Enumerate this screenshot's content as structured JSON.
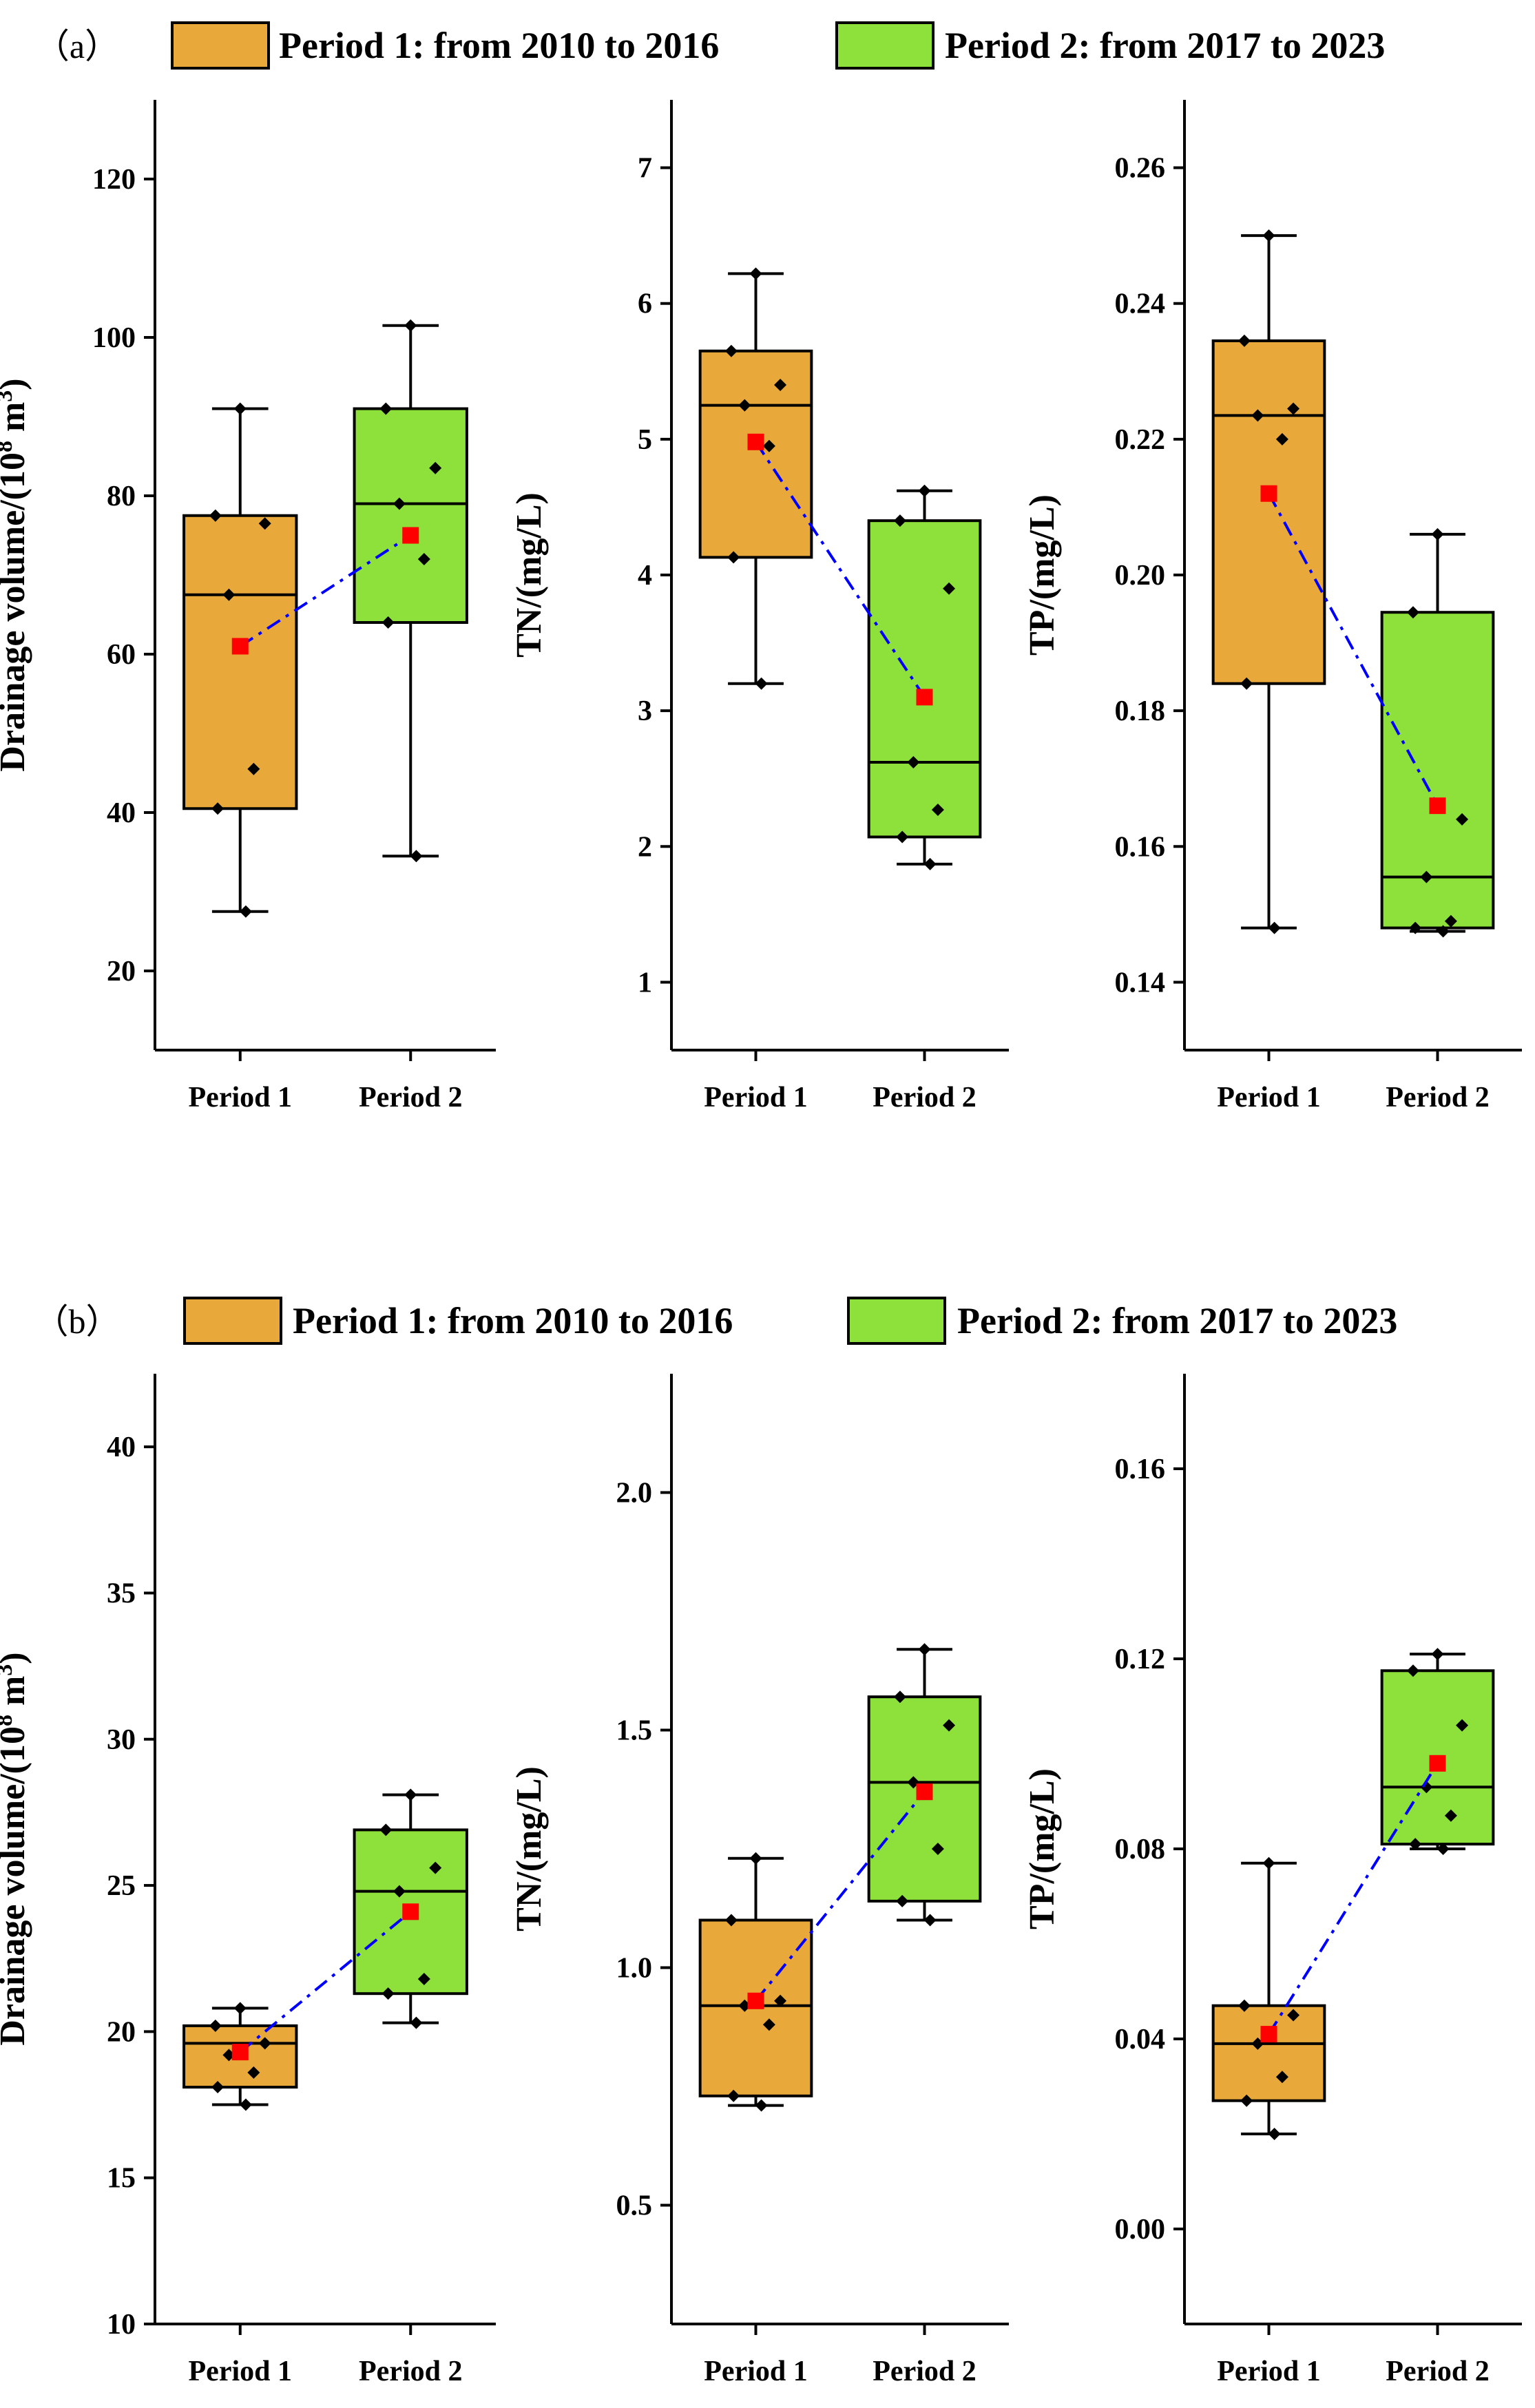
{
  "panels": [
    {
      "label": "（a）",
      "legend": [
        "Period 1: from 2010 to 2016",
        "Period 2: from 2017 to 2023"
      ],
      "charts": [
        {
          "type": "box",
          "ylabel": "Drainage volume/(10^8 m^3)",
          "ylim": [
            10,
            130
          ],
          "yticks": [
            20,
            40,
            60,
            80,
            100,
            120
          ],
          "categories": [
            "Period 1",
            "Period 2"
          ],
          "series": [
            {
              "whisker_low": 27.5,
              "q1": 40.5,
              "median": 67.5,
              "q3": 77.5,
              "whisker_high": 91,
              "mean": 61,
              "points": [
                91,
                77.5,
                76.5,
                67.5,
                45.5,
                40.5,
                27.5
              ]
            },
            {
              "whisker_low": 34.5,
              "q1": 64,
              "median": 79,
              "q3": 91,
              "whisker_high": 101.5,
              "mean": 75,
              "points": [
                101.5,
                91,
                83.5,
                79,
                72,
                64,
                34.5
              ]
            }
          ]
        },
        {
          "type": "box",
          "ylabel": "TN/(mg/L)",
          "ylim": [
            0.5,
            7.5
          ],
          "yticks": [
            1,
            2,
            3,
            4,
            5,
            6,
            7
          ],
          "categories": [
            "Period 1",
            "Period 2"
          ],
          "series": [
            {
              "whisker_low": 3.2,
              "q1": 4.13,
              "median": 5.25,
              "q3": 5.65,
              "whisker_high": 6.22,
              "mean": 4.98,
              "points": [
                6.22,
                5.65,
                5.4,
                5.25,
                4.95,
                4.13,
                3.2
              ]
            },
            {
              "whisker_low": 1.87,
              "q1": 2.07,
              "median": 2.62,
              "q3": 4.4,
              "whisker_high": 4.62,
              "mean": 3.1,
              "points": [
                4.62,
                4.4,
                3.9,
                2.62,
                2.27,
                2.07,
                1.87
              ]
            }
          ]
        },
        {
          "type": "box",
          "ylabel": "TP/(mg/L)",
          "ylim": [
            0.13,
            0.27
          ],
          "yticks": [
            0.14,
            0.16,
            0.18,
            0.2,
            0.22,
            0.24,
            0.26
          ],
          "categories": [
            "Period 1",
            "Period 2"
          ],
          "series": [
            {
              "whisker_low": 0.148,
              "q1": 0.184,
              "median": 0.2235,
              "q3": 0.2345,
              "whisker_high": 0.25,
              "mean": 0.212,
              "points": [
                0.25,
                0.2345,
                0.2245,
                0.2235,
                0.22,
                0.184,
                0.148
              ]
            },
            {
              "whisker_low": 0.1475,
              "q1": 0.148,
              "median": 0.1555,
              "q3": 0.1945,
              "whisker_high": 0.206,
              "mean": 0.166,
              "points": [
                0.206,
                0.1945,
                0.164,
                0.1555,
                0.149,
                0.148,
                0.1475
              ]
            }
          ]
        }
      ]
    },
    {
      "label": "（b）",
      "legend": [
        "Period 1: from 2010 to 2016",
        "Period 2: from 2017 to 2023"
      ],
      "charts": [
        {
          "type": "box",
          "ylabel": "Drainage volume/(10^8 m^3)",
          "ylim": [
            10,
            42.5
          ],
          "yticks": [
            10,
            15,
            20,
            25,
            30,
            35,
            40
          ],
          "categories": [
            "Period 1",
            "Period 2"
          ],
          "series": [
            {
              "whisker_low": 17.5,
              "q1": 18.1,
              "median": 19.6,
              "q3": 20.2,
              "whisker_high": 20.8,
              "mean": 19.3,
              "points": [
                20.8,
                20.2,
                19.6,
                19.2,
                18.6,
                18.1,
                17.5
              ]
            },
            {
              "whisker_low": 20.3,
              "q1": 21.3,
              "median": 24.8,
              "q3": 26.9,
              "whisker_high": 28.1,
              "mean": 24.1,
              "points": [
                28.1,
                26.9,
                25.6,
                24.8,
                21.8,
                21.3,
                20.3
              ]
            }
          ]
        },
        {
          "type": "box",
          "ylabel": "TN/(mg/L)",
          "ylim": [
            0.25,
            2.25
          ],
          "yticks": [
            0.5,
            1.0,
            1.5,
            2.0
          ],
          "categories": [
            "Period 1",
            "Period 2"
          ],
          "series": [
            {
              "whisker_low": 0.71,
              "q1": 0.73,
              "median": 0.92,
              "q3": 1.1,
              "whisker_high": 1.23,
              "mean": 0.93,
              "points": [
                1.23,
                1.1,
                0.93,
                0.92,
                0.88,
                0.73,
                0.71
              ]
            },
            {
              "whisker_low": 1.1,
              "q1": 1.14,
              "median": 1.39,
              "q3": 1.57,
              "whisker_high": 1.67,
              "mean": 1.37,
              "points": [
                1.67,
                1.57,
                1.51,
                1.39,
                1.25,
                1.14,
                1.1
              ]
            }
          ]
        },
        {
          "type": "box",
          "ylabel": "TP/(mg/L)",
          "ylim": [
            -0.02,
            0.18
          ],
          "yticks": [
            0.0,
            0.04,
            0.08,
            0.12,
            0.16
          ],
          "categories": [
            "Period 1",
            "Period 2"
          ],
          "series": [
            {
              "whisker_low": 0.02,
              "q1": 0.027,
              "median": 0.039,
              "q3": 0.047,
              "whisker_high": 0.077,
              "mean": 0.041,
              "points": [
                0.077,
                0.047,
                0.045,
                0.039,
                0.032,
                0.027,
                0.02
              ]
            },
            {
              "whisker_low": 0.08,
              "q1": 0.081,
              "median": 0.093,
              "q3": 0.1175,
              "whisker_high": 0.121,
              "mean": 0.098,
              "points": [
                0.121,
                0.1175,
                0.106,
                0.093,
                0.087,
                0.081,
                0.08
              ]
            }
          ]
        }
      ]
    }
  ],
  "colors": {
    "period1_fill": "#E8A93A",
    "period2_fill": "#8EE03A",
    "mean_marker": "#FF0000",
    "mean_line": "#0000FF",
    "axis": "#000000"
  }
}
